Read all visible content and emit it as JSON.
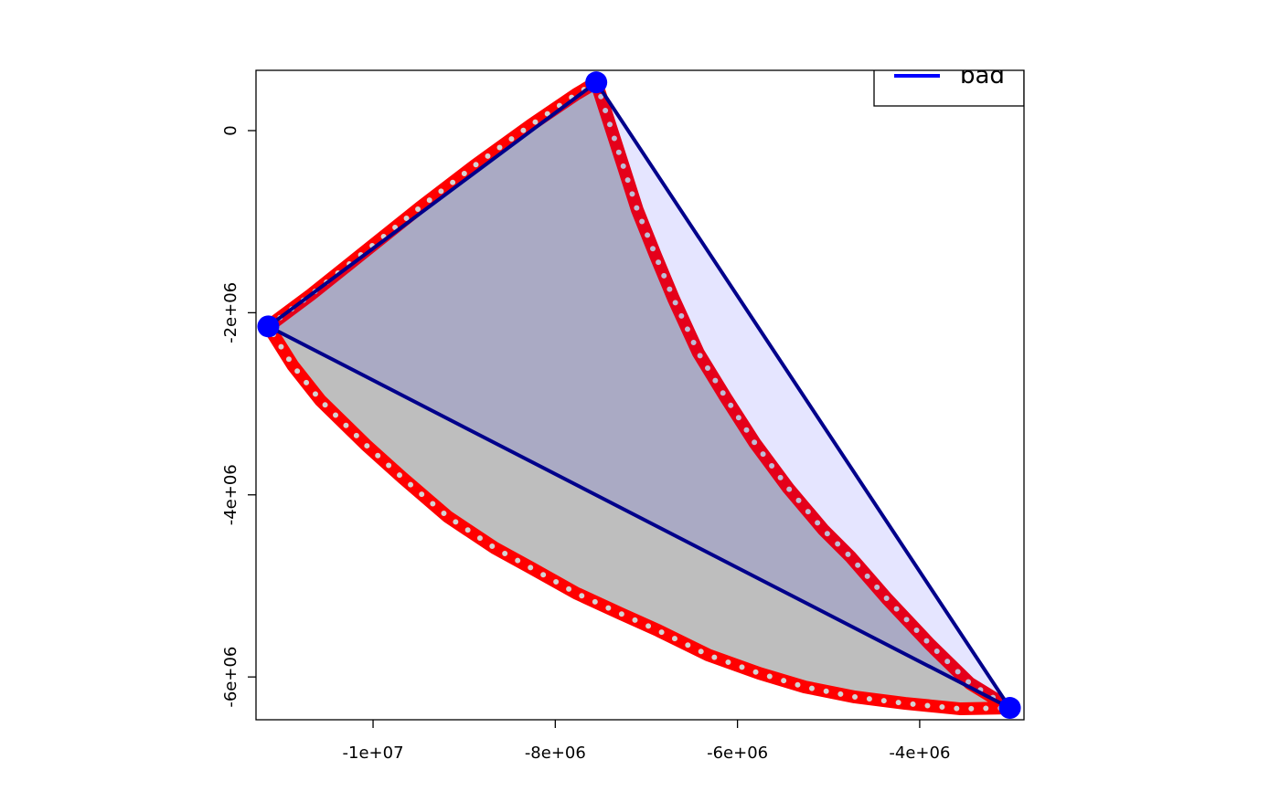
{
  "chart_data": {
    "type": "polygon",
    "xlim": [
      -11285000,
      -2855000
    ],
    "ylim": [
      -6470000,
      662000
    ],
    "xticks": [
      {
        "value": -10000000,
        "label": "-1e+07"
      },
      {
        "value": -8000000,
        "label": "-8e+06"
      },
      {
        "value": -6000000,
        "label": "-6e+06"
      },
      {
        "value": -4000000,
        "label": "-4e+06"
      }
    ],
    "yticks": [
      0,
      {
        "value": -2000000,
        "label": "-2e+06"
      },
      {
        "value": -4000000,
        "label": "-4e+06"
      },
      {
        "value": -6000000,
        "label": "-6e+06"
      }
    ],
    "curve": {
      "x": [
        -11150000,
        -10680000,
        -10080000,
        -9480000,
        -8880000,
        -8270000,
        -7770000,
        -7550000,
        -7260000,
        -7100000,
        -6900000,
        -6700000,
        -6430000,
        -6130000,
        -5810000,
        -5440000,
        -5060000,
        -4760000,
        -4360000,
        -3890000,
        -3450000,
        -3010000,
        -3550000,
        -4160000,
        -4710000,
        -5260000,
        -5760000,
        -6320000,
        -6870000,
        -7270000,
        -7770000,
        -8270000,
        -8670000,
        -9180000,
        -9680000,
        -10080000,
        -10580000,
        -10880000
      ],
      "y": [
        -2150000,
        -1800000,
        -1320000,
        -840000,
        -380000,
        60000,
        400000,
        530000,
        -370000,
        -870000,
        -1370000,
        -1850000,
        -2440000,
        -2930000,
        -3430000,
        -3930000,
        -4380000,
        -4680000,
        -5140000,
        -5640000,
        -6070000,
        -6340000,
        -6350000,
        -6290000,
        -6220000,
        -6110000,
        -5960000,
        -5760000,
        -5490000,
        -5310000,
        -5080000,
        -4800000,
        -4580000,
        -4240000,
        -3810000,
        -3450000,
        -2960000,
        -2580000
      ],
      "fill": "#bebebe",
      "color": "#ff0000",
      "dot_color": "#d3d3d3"
    },
    "triangle": {
      "x": [
        -11150000,
        -7550000,
        -3010000
      ],
      "y": [
        -2150000,
        530000,
        -6340000
      ],
      "fill": "rgba(0,0,255,0.1)",
      "color": "#00008b"
    },
    "points": {
      "x": [
        -11150000,
        -7550000,
        -3010000
      ],
      "y": [
        -2150000,
        530000,
        -6340000
      ],
      "color": "#0000ff"
    },
    "legend": [
      {
        "name": "bad",
        "color": "#0000ff"
      }
    ],
    "legend_position": "topright"
  }
}
